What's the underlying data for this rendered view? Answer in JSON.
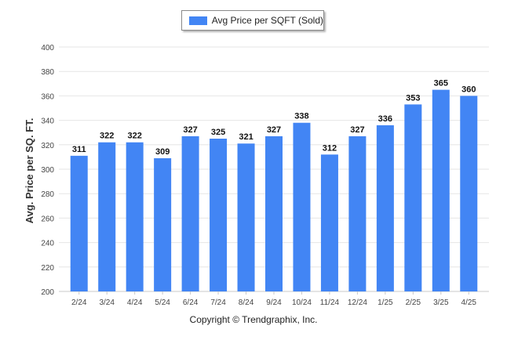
{
  "chart_data": {
    "type": "bar",
    "categories": [
      "2/24",
      "3/24",
      "4/24",
      "5/24",
      "6/24",
      "7/24",
      "8/24",
      "9/24",
      "10/24",
      "11/24",
      "12/24",
      "1/25",
      "2/25",
      "3/25",
      "4/25"
    ],
    "series": [
      {
        "name": "Avg Price per SQFT (Sold)",
        "values": [
          311,
          322,
          322,
          309,
          327,
          325,
          321,
          327,
          338,
          312,
          327,
          336,
          353,
          365,
          360
        ]
      }
    ],
    "ylabel": "Avg. Price per SQ. FT.",
    "xlabel": "",
    "ylim": [
      200,
      400
    ],
    "yticks": [
      200,
      220,
      240,
      260,
      280,
      300,
      320,
      340,
      360,
      380,
      400
    ],
    "grid": true,
    "legend_position": "top-center",
    "data_labels": true,
    "bar_color": "#4285f4"
  },
  "footer": {
    "copyright": "Copyright © Trendgraphix, Inc."
  }
}
